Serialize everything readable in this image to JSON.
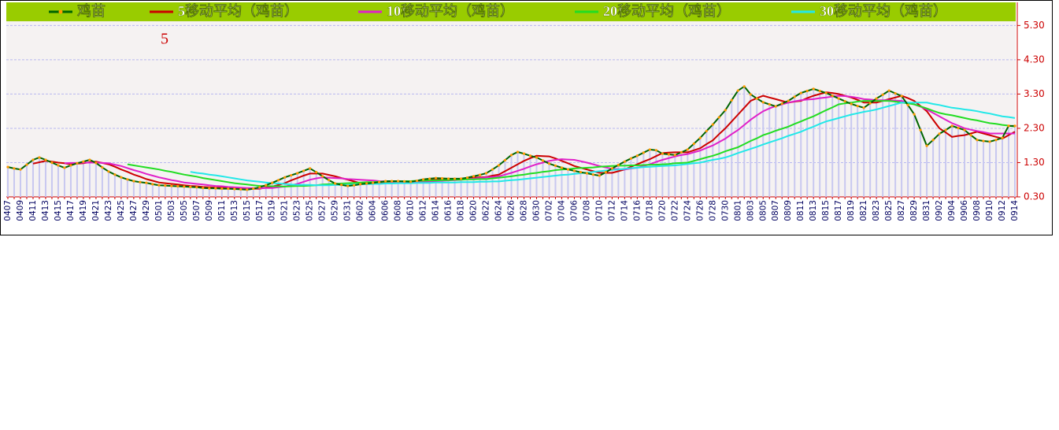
{
  "chart_data": {
    "type": "line",
    "annotation": "5",
    "categories": [
      "0407",
      null,
      "0409",
      null,
      "0411",
      null,
      "0413",
      null,
      "0415",
      null,
      "0417",
      null,
      "0419",
      null,
      "0421",
      null,
      "0423",
      null,
      "0425",
      null,
      "0427",
      null,
      "0429",
      null,
      "0501",
      null,
      "0503",
      null,
      "0505",
      null,
      "0507",
      null,
      "0509",
      null,
      "0511",
      null,
      "0513",
      null,
      "0515",
      null,
      "0517",
      null,
      "0519",
      null,
      "0521",
      null,
      "0523",
      null,
      "0525",
      null,
      "0527",
      null,
      "0529",
      null,
      "0531",
      null,
      "0602",
      null,
      "0604",
      null,
      "0606",
      null,
      "0608",
      null,
      "0610",
      null,
      "0612",
      null,
      "0614",
      null,
      "0616",
      null,
      "0618",
      null,
      "0620",
      null,
      "0622",
      null,
      "0624",
      null,
      "0626",
      null,
      "0628",
      null,
      "0630",
      null,
      "0702",
      null,
      "0704",
      null,
      "0706",
      null,
      "0708",
      null,
      "0710",
      null,
      "0712",
      null,
      "0714",
      null,
      "0716",
      null,
      "0718",
      null,
      "0720",
      null,
      "0722",
      null,
      "0724",
      null,
      "0726",
      null,
      "0728",
      null,
      "0730",
      null,
      "0801",
      null,
      "0803",
      null,
      "0805",
      null,
      "0807",
      null,
      "0809",
      null,
      "0811",
      null,
      "0813",
      null,
      "0815",
      null,
      "0817",
      null,
      "0819",
      null,
      "0821",
      null,
      "0823",
      null,
      "0825",
      null,
      "0827",
      null,
      "0829",
      null,
      "0831",
      null,
      "0902",
      null,
      "0904",
      null,
      "0906",
      null,
      "0908",
      null,
      "0910",
      null,
      "0912",
      null,
      "0914"
    ],
    "series": [
      {
        "name": "鸡苗",
        "color": "#006400",
        "marker_color": "#ff9900",
        "bar_color": "#c8c8f0",
        "values": [
          1.17,
          1.13,
          1.1,
          1.24,
          1.38,
          1.45,
          1.38,
          1.3,
          1.22,
          1.15,
          1.22,
          1.28,
          1.33,
          1.38,
          1.29,
          1.16,
          1.04,
          0.95,
          0.87,
          0.81,
          0.76,
          0.73,
          0.71,
          0.67,
          0.64,
          0.63,
          0.62,
          0.61,
          0.6,
          0.59,
          0.58,
          0.56,
          0.55,
          0.55,
          0.54,
          0.54,
          0.53,
          0.52,
          0.51,
          0.54,
          0.58,
          0.64,
          0.71,
          0.79,
          0.87,
          0.93,
          0.99,
          1.06,
          1.13,
          1.02,
          0.9,
          0.79,
          0.69,
          0.65,
          0.62,
          0.64,
          0.67,
          0.69,
          0.71,
          0.73,
          0.76,
          0.76,
          0.76,
          0.75,
          0.74,
          0.77,
          0.81,
          0.83,
          0.85,
          0.84,
          0.83,
          0.83,
          0.83,
          0.86,
          0.9,
          0.94,
          0.99,
          1.1,
          1.22,
          1.37,
          1.52,
          1.61,
          1.56,
          1.5,
          1.45,
          1.36,
          1.27,
          1.21,
          1.15,
          1.1,
          1.06,
          1.02,
          0.99,
          0.95,
          0.92,
          1.02,
          1.13,
          1.23,
          1.33,
          1.42,
          1.5,
          1.59,
          1.68,
          1.66,
          1.56,
          1.54,
          1.52,
          1.6,
          1.68,
          1.85,
          2.02,
          2.22,
          2.41,
          2.62,
          2.83,
          3.12,
          3.4,
          3.52,
          3.29,
          3.17,
          3.06,
          3.0,
          2.94,
          3.02,
          3.1,
          3.22,
          3.33,
          3.39,
          3.45,
          3.39,
          3.33,
          3.25,
          3.17,
          3.09,
          3.01,
          2.95,
          2.9,
          3.03,
          3.17,
          3.28,
          3.4,
          3.32,
          3.24,
          2.98,
          2.71,
          2.25,
          1.79,
          1.96,
          2.14,
          2.25,
          2.37,
          2.31,
          2.25,
          2.1,
          1.96,
          1.93,
          1.91,
          1.96,
          2.02,
          2.37,
          2.37
        ]
      },
      {
        "name": "5移动平均（鸡苗）",
        "color": "#cc0000",
        "values": [
          null,
          null,
          null,
          null,
          1.27,
          1.31,
          1.35,
          1.33,
          1.3,
          1.28,
          1.25,
          1.27,
          1.28,
          1.31,
          1.33,
          1.29,
          1.25,
          1.18,
          1.1,
          1.03,
          0.95,
          0.89,
          0.82,
          0.77,
          0.72,
          0.7,
          0.68,
          0.66,
          0.64,
          0.62,
          0.61,
          0.59,
          0.58,
          0.57,
          0.57,
          0.56,
          0.55,
          0.55,
          0.54,
          0.54,
          0.54,
          0.57,
          0.6,
          0.65,
          0.7,
          0.78,
          0.85,
          0.92,
          0.98,
          0.98,
          0.98,
          0.94,
          0.9,
          0.85,
          0.8,
          0.75,
          0.7,
          0.7,
          0.7,
          0.7,
          0.7,
          0.71,
          0.73,
          0.74,
          0.75,
          0.76,
          0.78,
          0.79,
          0.8,
          0.81,
          0.82,
          0.82,
          0.83,
          0.84,
          0.86,
          0.87,
          0.88,
          0.92,
          0.95,
          1.05,
          1.15,
          1.25,
          1.35,
          1.43,
          1.5,
          1.49,
          1.48,
          1.42,
          1.35,
          1.28,
          1.2,
          1.15,
          1.1,
          1.05,
          1.0,
          1.0,
          1.0,
          1.05,
          1.1,
          1.18,
          1.25,
          1.33,
          1.4,
          1.49,
          1.58,
          1.59,
          1.6,
          1.6,
          1.6,
          1.66,
          1.72,
          1.84,
          1.95,
          2.13,
          2.3,
          2.5,
          2.7,
          2.9,
          3.1,
          3.18,
          3.25,
          3.2,
          3.15,
          3.1,
          3.05,
          3.08,
          3.1,
          3.18,
          3.25,
          3.3,
          3.35,
          3.33,
          3.3,
          3.25,
          3.2,
          3.13,
          3.05,
          3.05,
          3.05,
          3.1,
          3.15,
          3.2,
          3.25,
          3.18,
          3.1,
          2.95,
          2.8,
          2.55,
          2.3,
          2.18,
          2.05,
          2.08,
          2.1,
          2.15,
          2.2,
          2.15,
          2.1,
          2.05,
          2.0,
          2.1,
          2.2
        ]
      },
      {
        "name": "10移动平均（鸡苗）",
        "color": "#e020c8",
        "values": [
          null,
          null,
          null,
          null,
          null,
          null,
          null,
          null,
          null,
          1.28,
          1.29,
          1.29,
          1.3,
          1.3,
          1.3,
          1.29,
          1.28,
          1.24,
          1.2,
          1.14,
          1.08,
          1.03,
          0.97,
          0.92,
          0.87,
          0.83,
          0.79,
          0.76,
          0.72,
          0.7,
          0.68,
          0.66,
          0.64,
          0.62,
          0.61,
          0.59,
          0.58,
          0.57,
          0.56,
          0.56,
          0.55,
          0.56,
          0.56,
          0.58,
          0.6,
          0.64,
          0.68,
          0.74,
          0.8,
          0.84,
          0.87,
          0.86,
          0.85,
          0.84,
          0.82,
          0.81,
          0.8,
          0.79,
          0.78,
          0.76,
          0.75,
          0.73,
          0.72,
          0.72,
          0.73,
          0.73,
          0.74,
          0.75,
          0.76,
          0.77,
          0.78,
          0.79,
          0.8,
          0.82,
          0.83,
          0.85,
          0.87,
          0.88,
          0.9,
          0.95,
          1.0,
          1.06,
          1.12,
          1.19,
          1.25,
          1.3,
          1.35,
          1.38,
          1.4,
          1.39,
          1.38,
          1.34,
          1.3,
          1.25,
          1.2,
          1.16,
          1.12,
          1.11,
          1.1,
          1.13,
          1.15,
          1.2,
          1.25,
          1.32,
          1.38,
          1.43,
          1.48,
          1.52,
          1.55,
          1.6,
          1.65,
          1.73,
          1.8,
          1.9,
          2.0,
          2.13,
          2.25,
          2.4,
          2.55,
          2.68,
          2.8,
          2.88,
          2.95,
          3.0,
          3.05,
          3.09,
          3.12,
          3.14,
          3.15,
          3.18,
          3.2,
          3.23,
          3.25,
          3.24,
          3.22,
          3.19,
          3.15,
          3.14,
          3.12,
          3.12,
          3.12,
          3.11,
          3.1,
          3.05,
          3.0,
          2.93,
          2.85,
          2.75,
          2.65,
          2.55,
          2.45,
          2.38,
          2.3,
          2.26,
          2.22,
          2.19,
          2.15,
          2.15,
          2.15,
          2.15,
          2.15
        ]
      },
      {
        "name": "20移动平均（鸡苗）",
        "color": "#22dd22",
        "values": [
          null,
          null,
          null,
          null,
          null,
          null,
          null,
          null,
          null,
          null,
          null,
          null,
          null,
          null,
          null,
          null,
          null,
          null,
          null,
          1.25,
          1.22,
          1.19,
          1.16,
          1.13,
          1.1,
          1.06,
          1.03,
          0.99,
          0.95,
          0.92,
          0.89,
          0.85,
          0.82,
          0.79,
          0.76,
          0.73,
          0.7,
          0.68,
          0.66,
          0.64,
          0.62,
          0.62,
          0.61,
          0.61,
          0.6,
          0.61,
          0.62,
          0.62,
          0.63,
          0.64,
          0.66,
          0.67,
          0.68,
          0.69,
          0.7,
          0.71,
          0.72,
          0.73,
          0.73,
          0.74,
          0.74,
          0.75,
          0.75,
          0.76,
          0.76,
          0.77,
          0.77,
          0.78,
          0.78,
          0.79,
          0.79,
          0.8,
          0.8,
          0.81,
          0.81,
          0.82,
          0.82,
          0.84,
          0.86,
          0.88,
          0.9,
          0.93,
          0.95,
          0.98,
          1.0,
          1.03,
          1.05,
          1.08,
          1.1,
          1.11,
          1.13,
          1.14,
          1.15,
          1.16,
          1.18,
          1.19,
          1.2,
          1.21,
          1.21,
          1.22,
          1.22,
          1.23,
          1.24,
          1.24,
          1.25,
          1.26,
          1.28,
          1.29,
          1.3,
          1.35,
          1.4,
          1.45,
          1.5,
          1.56,
          1.63,
          1.69,
          1.75,
          1.84,
          1.93,
          2.01,
          2.1,
          2.16,
          2.23,
          2.29,
          2.35,
          2.43,
          2.5,
          2.58,
          2.65,
          2.74,
          2.83,
          2.91,
          3.0,
          3.03,
          3.05,
          3.08,
          3.1,
          3.1,
          3.1,
          3.1,
          3.1,
          3.08,
          3.05,
          3.03,
          3.0,
          2.94,
          2.88,
          2.81,
          2.75,
          2.71,
          2.68,
          2.64,
          2.6,
          2.56,
          2.53,
          2.49,
          2.45,
          2.43,
          2.4,
          2.38,
          2.35
        ]
      },
      {
        "name": "30移动平均（鸡苗）",
        "color": "#22e8e8",
        "values": [
          null,
          null,
          null,
          null,
          null,
          null,
          null,
          null,
          null,
          null,
          null,
          null,
          null,
          null,
          null,
          null,
          null,
          null,
          null,
          null,
          null,
          null,
          null,
          null,
          null,
          null,
          null,
          null,
          null,
          1.03,
          1.0,
          0.98,
          0.95,
          0.93,
          0.9,
          0.87,
          0.84,
          0.81,
          0.78,
          0.76,
          0.74,
          0.72,
          0.7,
          0.69,
          0.68,
          0.66,
          0.65,
          0.65,
          0.65,
          0.64,
          0.64,
          0.64,
          0.65,
          0.65,
          0.65,
          0.66,
          0.67,
          0.67,
          0.68,
          0.68,
          0.69,
          0.69,
          0.7,
          0.7,
          0.7,
          0.71,
          0.71,
          0.71,
          0.72,
          0.72,
          0.72,
          0.72,
          0.73,
          0.73,
          0.73,
          0.74,
          0.74,
          0.75,
          0.75,
          0.77,
          0.79,
          0.8,
          0.82,
          0.84,
          0.86,
          0.88,
          0.9,
          0.92,
          0.94,
          0.95,
          0.97,
          0.99,
          1.01,
          1.03,
          1.05,
          1.07,
          1.09,
          1.1,
          1.12,
          1.14,
          1.15,
          1.17,
          1.18,
          1.19,
          1.2,
          1.21,
          1.22,
          1.24,
          1.26,
          1.28,
          1.3,
          1.34,
          1.38,
          1.41,
          1.45,
          1.51,
          1.58,
          1.64,
          1.7,
          1.76,
          1.83,
          1.89,
          1.95,
          2.01,
          2.08,
          2.14,
          2.2,
          2.28,
          2.35,
          2.43,
          2.5,
          2.55,
          2.6,
          2.65,
          2.7,
          2.74,
          2.78,
          2.81,
          2.85,
          2.9,
          2.95,
          3.0,
          3.05,
          3.05,
          3.05,
          3.05,
          3.05,
          3.01,
          2.98,
          2.94,
          2.9,
          2.88,
          2.85,
          2.83,
          2.8,
          2.76,
          2.73,
          2.69,
          2.65,
          2.63,
          2.6
        ]
      }
    ],
    "ylim": [
      0.3,
      5.4
    ],
    "yticks": [
      {
        "value": 0.3,
        "label": "0.30"
      },
      {
        "value": 1.3,
        "label": "1.30"
      },
      {
        "value": 2.3,
        "label": "2.30"
      },
      {
        "value": 3.3,
        "label": "3.30"
      },
      {
        "value": 4.3,
        "label": "4.30"
      },
      {
        "value": 5.3,
        "label": "5.30"
      }
    ],
    "grid": true,
    "legend": "top",
    "legend_color": "#99cc00",
    "axis_color": "#cc0000"
  }
}
